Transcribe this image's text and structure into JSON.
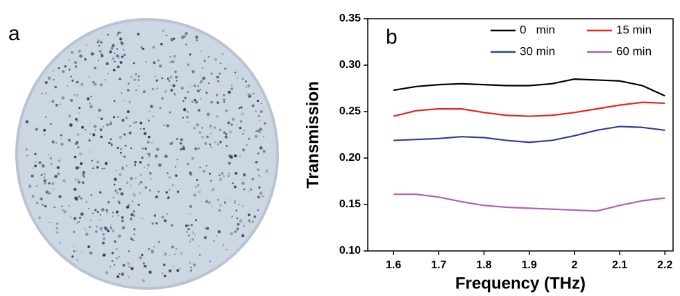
{
  "photo": {
    "label": "a"
  },
  "chart_data": {
    "type": "line",
    "annotations": [
      "b"
    ],
    "x_label": "Frequency (THz)",
    "y_label": "Transmission",
    "x": [
      1.6,
      1.65,
      1.7,
      1.75,
      1.8,
      1.85,
      1.9,
      1.95,
      2.0,
      2.05,
      2.1,
      2.15,
      2.2
    ],
    "series": [
      {
        "name": "0   min",
        "color": "#000000",
        "values": [
          0.273,
          0.277,
          0.279,
          0.28,
          0.279,
          0.278,
          0.278,
          0.28,
          0.285,
          0.284,
          0.283,
          0.278,
          0.267
        ]
      },
      {
        "name": "15 min",
        "color": "#e8231c",
        "values": [
          0.245,
          0.251,
          0.253,
          0.253,
          0.249,
          0.246,
          0.245,
          0.246,
          0.249,
          0.253,
          0.257,
          0.26,
          0.259
        ]
      },
      {
        "name": "30 min",
        "color": "#2a3f9b",
        "values": [
          0.219,
          0.22,
          0.221,
          0.223,
          0.222,
          0.219,
          0.217,
          0.219,
          0.224,
          0.23,
          0.234,
          0.233,
          0.23
        ]
      },
      {
        "name": "60 min",
        "color": "#b45db6",
        "values": [
          0.161,
          0.161,
          0.158,
          0.153,
          0.149,
          0.147,
          0.146,
          0.145,
          0.144,
          0.143,
          0.149,
          0.154,
          0.157
        ]
      }
    ],
    "xlim": [
      1.543,
      2.218
    ],
    "xticks": [
      1.6,
      1.7,
      1.8,
      1.9,
      2.0,
      2.1,
      2.2
    ],
    "ylim": [
      0.1,
      0.35
    ],
    "yticks": [
      {
        "value": 0.1,
        "label": "0.10"
      },
      0.15,
      {
        "value": 0.2,
        "label": "0.20"
      },
      0.25,
      {
        "value": 0.3,
        "label": "0.30"
      },
      0.35
    ],
    "grid": false,
    "legend": "upper right"
  }
}
